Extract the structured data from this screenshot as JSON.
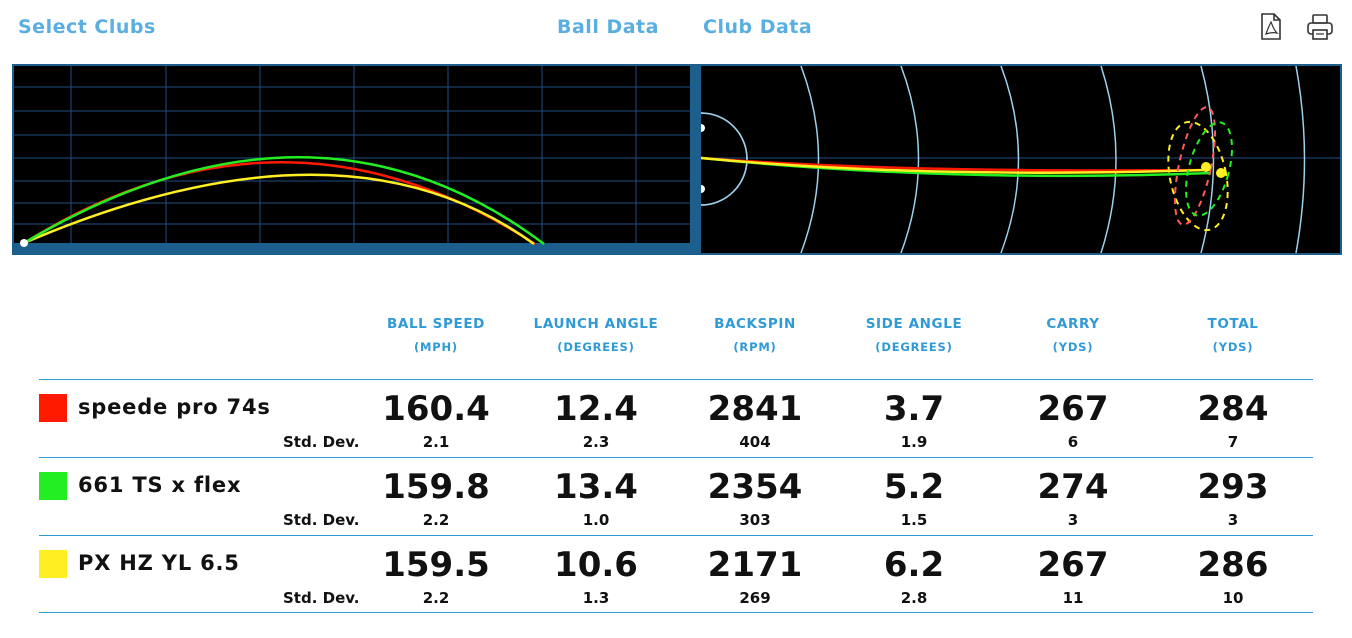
{
  "nav": {
    "select_clubs": "Select Clubs",
    "ball_data": "Ball Data",
    "club_data": "Club Data",
    "pdf_icon": "pdf-icon",
    "print_icon": "print-icon"
  },
  "columns": [
    {
      "label": "BALL SPEED",
      "unit": "(MPH)"
    },
    {
      "label": "LAUNCH ANGLE",
      "unit": "(DEGREES)"
    },
    {
      "label": "BACKSPIN",
      "unit": "(RPM)"
    },
    {
      "label": "SIDE ANGLE",
      "unit": "(DEGREES)"
    },
    {
      "label": "CARRY",
      "unit": "(YDS)"
    },
    {
      "label": "TOTAL",
      "unit": "(YDS)"
    }
  ],
  "std_dev_label": "Std. Dev.",
  "clubs": [
    {
      "name": "speede pro 74s",
      "color": "#ff1a00",
      "values": [
        "160.4",
        "12.4",
        "2841",
        "3.7",
        "267",
        "284"
      ],
      "std_dev": [
        "2.1",
        "2.3",
        "404",
        "1.9",
        "6",
        "7"
      ]
    },
    {
      "name": "661 TS x flex",
      "color": "#22ee22",
      "values": [
        "159.8",
        "13.4",
        "2354",
        "5.2",
        "274",
        "293"
      ],
      "std_dev": [
        "2.2",
        "1.0",
        "303",
        "1.5",
        "3",
        "3"
      ]
    },
    {
      "name": "PX HZ YL 6.5",
      "color": "#ffee22",
      "values": [
        "159.5",
        "10.6",
        "2171",
        "6.2",
        "267",
        "286"
      ],
      "std_dev": [
        "2.2",
        "1.3",
        "269",
        "2.8",
        "11",
        "10"
      ]
    }
  ]
}
